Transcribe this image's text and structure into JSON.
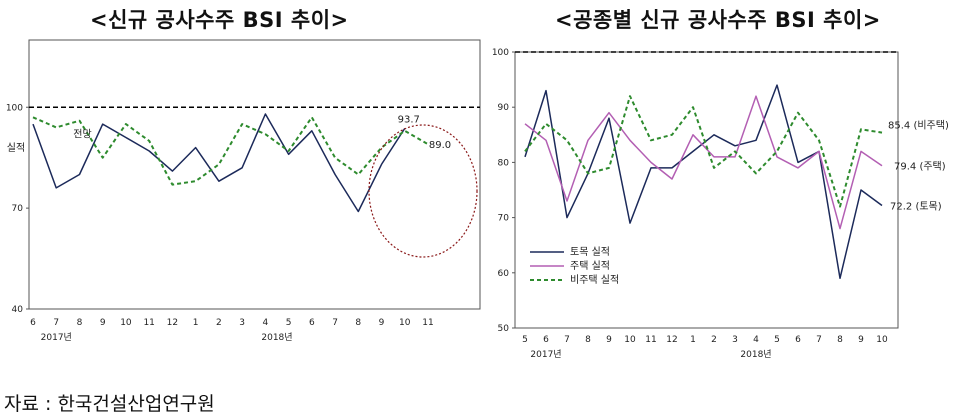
{
  "source_note": "자료 : 한국건설산업연구원",
  "chart_data": [
    {
      "type": "line",
      "title": "<신규 공사수주 BSI 추이>",
      "x_labels": [
        "6",
        "7",
        "8",
        "9",
        "10",
        "11",
        "12",
        "1",
        "2",
        "3",
        "4",
        "5",
        "6",
        "7",
        "8",
        "9",
        "10",
        "11"
      ],
      "year_labels": [
        {
          "text": "2017년",
          "index": 1
        },
        {
          "text": "2018년",
          "index": 10.5
        }
      ],
      "ylim": [
        40,
        120
      ],
      "yticks": [
        40,
        70,
        100
      ],
      "reference_line": 100,
      "series": [
        {
          "name": "실적",
          "style": "solid",
          "color": "#1c2a5a",
          "values": [
            95,
            76,
            80,
            95,
            91,
            87,
            81,
            88,
            78,
            82,
            98,
            86,
            93,
            80,
            69,
            83,
            93.7,
            null
          ]
        },
        {
          "name": "전망",
          "style": "dashed",
          "color": "#2e8b2e",
          "values": [
            97,
            94,
            96,
            85,
            95,
            90,
            77,
            78,
            83,
            95,
            92,
            87,
            97,
            85,
            80,
            88,
            93,
            89.0
          ]
        }
      ],
      "annotations": [
        {
          "text": "93.7",
          "index": 16,
          "value": 93.7
        },
        {
          "text": "89.0",
          "index": 17,
          "value": 89.0
        }
      ],
      "series_labels": [
        {
          "text": "실적",
          "series": 0
        },
        {
          "text": "전망",
          "series": 1
        }
      ],
      "highlight_color": "#8b1a1a"
    },
    {
      "type": "line",
      "title": "<공종별 신규 공사수주 BSI 추이>",
      "x_labels": [
        "5",
        "6",
        "7",
        "8",
        "9",
        "10",
        "11",
        "12",
        "1",
        "2",
        "3",
        "4",
        "5",
        "6",
        "7",
        "8",
        "9",
        "10"
      ],
      "year_labels": [
        {
          "text": "2017년",
          "index": 1
        },
        {
          "text": "2018년",
          "index": 11
        }
      ],
      "ylim": [
        50,
        100
      ],
      "yticks": [
        50,
        60,
        70,
        80,
        90,
        100
      ],
      "reference_line": 100,
      "series": [
        {
          "name": "토목 실적",
          "style": "solid",
          "color": "#1c2a5a",
          "values": [
            81,
            93,
            70,
            78,
            88,
            69,
            79,
            79,
            82,
            85,
            83,
            84,
            94,
            80,
            82,
            59,
            75,
            72.2
          ]
        },
        {
          "name": "주택 실적",
          "style": "solid",
          "color": "#b35fb3",
          "values": [
            87,
            84,
            73,
            84,
            89,
            84,
            80,
            77,
            85,
            81,
            81,
            92,
            81,
            79,
            82,
            68,
            82,
            79.4
          ]
        },
        {
          "name": "비주택 실적",
          "style": "dashed",
          "color": "#2e8b2e",
          "values": [
            82,
            87,
            84,
            78,
            79,
            92,
            84,
            85,
            90,
            79,
            82,
            78,
            82,
            89,
            84,
            72,
            86,
            85.4
          ]
        }
      ],
      "end_labels": [
        "72.2 (토목)",
        "79.4 (주택)",
        "85.4 (비주택)"
      ]
    }
  ]
}
